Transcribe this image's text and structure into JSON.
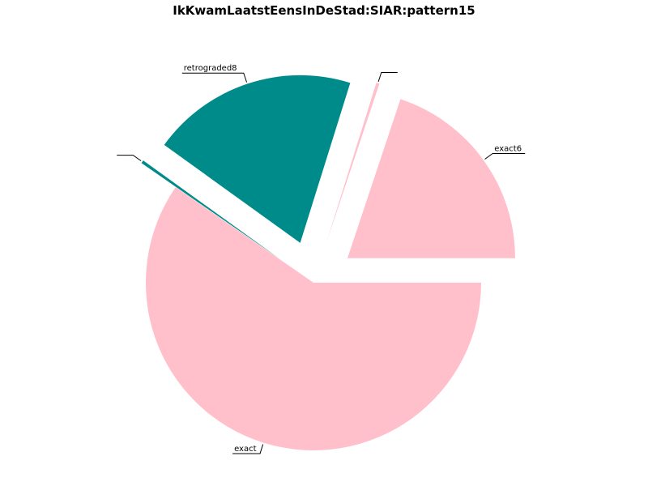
{
  "chart_data": {
    "type": "pie",
    "title": "IkKwamLaatstEensInDeStad:SIAR:pattern15",
    "slices": [
      {
        "label": "exact6",
        "value": 20,
        "color": "#ffc0cb",
        "explode": 0.25
      },
      {
        "label": "",
        "value": 0.3,
        "color": "#ffc0cb",
        "explode": 0.25
      },
      {
        "label": "retrograded8",
        "value": 20,
        "color": "#008b8b",
        "explode": 0.25
      },
      {
        "label": "",
        "value": 0.3,
        "color": "#008b8b",
        "explode": 0.25
      },
      {
        "label": "exact",
        "value": 60,
        "color": "#ffc0cb",
        "explode": 0.0
      }
    ],
    "start_angle_deg": 0,
    "direction": "counterclockwise",
    "legend": "none"
  }
}
